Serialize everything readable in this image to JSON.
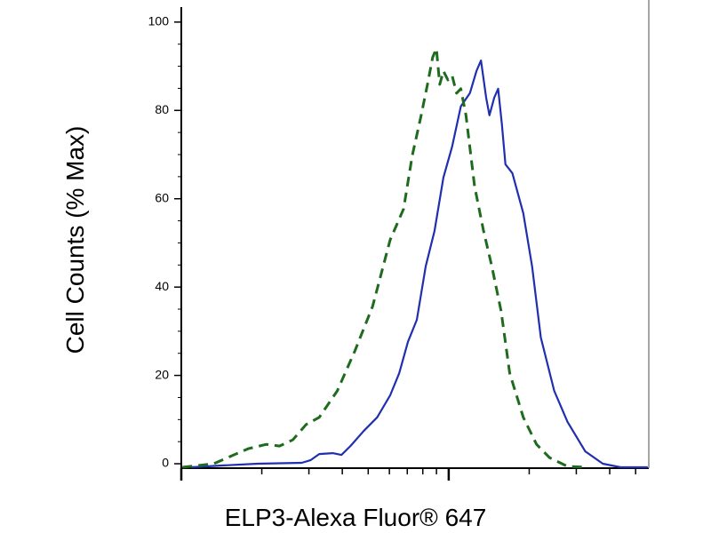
{
  "chart_data": {
    "type": "line",
    "title": null,
    "xlabel": "ELP3-Alexa Fluor® 647",
    "ylabel": "Cell Counts (% Max)",
    "xscale": "log",
    "xlim": [
      10,
      560
    ],
    "xticks": [
      10,
      100
    ],
    "xminor_ticks": [
      20,
      30,
      40,
      50,
      60,
      70,
      80,
      90,
      200,
      300,
      400,
      500
    ],
    "xtick_labels": false,
    "ylim": [
      -1,
      105
    ],
    "yticks": [
      0,
      20,
      40,
      60,
      80,
      100
    ],
    "yminor_ticks": [
      5,
      10,
      15,
      25,
      30,
      35,
      45,
      50,
      55,
      65,
      70,
      75,
      85,
      90,
      95
    ],
    "grid": false,
    "series": [
      {
        "name": null,
        "color": "#1f2fb0",
        "dash": false,
        "x": [
          10.9,
          14.2,
          19.3,
          28.2,
          30.4,
          32.8,
          36.8,
          39.7,
          42.9,
          48.1,
          54.0,
          60.4,
          65.3,
          70.4,
          76.0,
          82.0,
          88.5,
          95.5,
          103,
          111,
          120,
          127,
          132,
          138,
          142,
          148,
          153,
          158,
          163,
          173,
          190,
          205,
          221,
          248,
          278,
          324,
          377,
          439,
          555
        ],
        "values": [
          -0.8,
          -0.4,
          0,
          0.2,
          0.8,
          2.2,
          2.4,
          2.0,
          4.0,
          7.4,
          10.5,
          15.5,
          20.5,
          27.6,
          32.6,
          44.7,
          52.7,
          64.8,
          71.8,
          80.9,
          83.9,
          88.9,
          91.3,
          82.9,
          78.9,
          82.9,
          84.9,
          76.9,
          67.8,
          65.8,
          56.7,
          44.7,
          28.6,
          16.5,
          9.5,
          2.8,
          0,
          -0.8,
          -0.8
        ]
      },
      {
        "name": null,
        "color": "#1e6b1e",
        "dash": true,
        "x": [
          10.1,
          13.2,
          17.8,
          20.8,
          23.3,
          26.1,
          29.3,
          32.8,
          38.3,
          44.6,
          51.9,
          60.4,
          67.8,
          73.1,
          78.9,
          83.3,
          87.1,
          89.9,
          92.6,
          95.5,
          99.3,
          103,
          107,
          111,
          116,
          125,
          135,
          145,
          157,
          169,
          190,
          213,
          238,
          278,
          324
        ],
        "values": [
          -0.8,
          0,
          3.4,
          4.4,
          4.0,
          5.4,
          8.9,
          10.5,
          16.5,
          25.6,
          35.6,
          50.7,
          57.7,
          69.8,
          78.9,
          85.9,
          92.0,
          94.0,
          85.9,
          88.9,
          86.9,
          87.9,
          83.9,
          84.9,
          78.9,
          62.8,
          52.7,
          44.7,
          34.6,
          20.5,
          10.5,
          4.4,
          1.4,
          -0.6,
          -0.8
        ]
      }
    ]
  }
}
